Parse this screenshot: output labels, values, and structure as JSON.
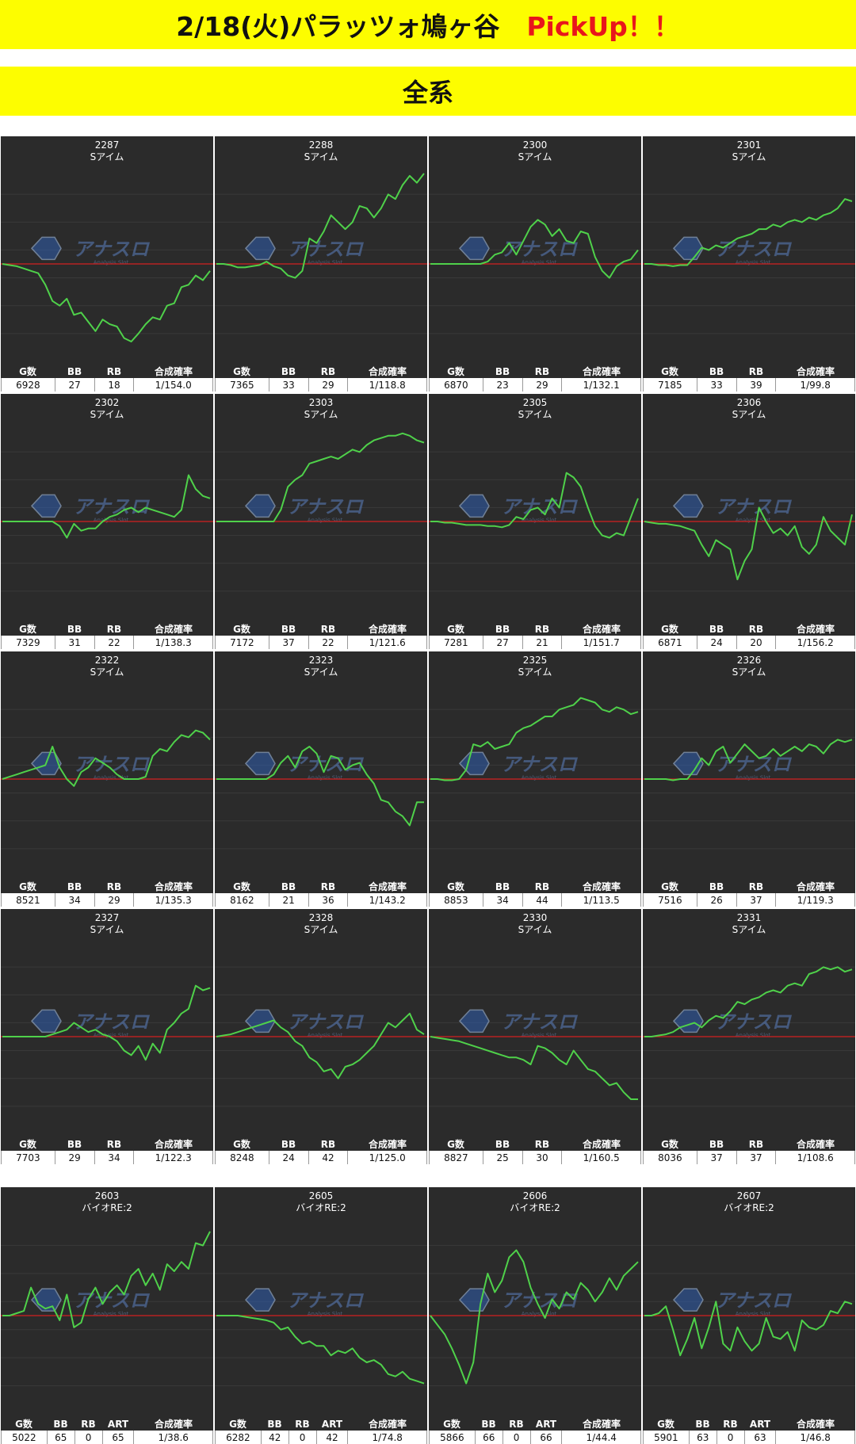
{
  "header": {
    "title": "2/18(火)パラッツォ鳩ヶ谷",
    "pickup": "PickUp！！",
    "section": "全系"
  },
  "colors": {
    "banner": "#fdfd00",
    "pickup": "#e8161b",
    "panel_bg": "#2b2b2b",
    "line": "#4fd14a",
    "baseline": "#d42020"
  },
  "watermark": {
    "text": "アナスロ",
    "sub": "Analysis Slot"
  },
  "columns_s": [
    "G数",
    "BB",
    "RB",
    "合成確率"
  ],
  "columns_bio": [
    "G数",
    "BB",
    "RB",
    "ART",
    "合成確率"
  ],
  "machines": [
    {
      "no": "2287",
      "model": "Sアイム",
      "g": "6928",
      "bb": "27",
      "rb": "18",
      "rate": "1/154.0",
      "trend": [
        0,
        -1,
        -2,
        -4,
        -6,
        -8,
        -18,
        -32,
        -36,
        -30,
        -44,
        -42,
        -50,
        -58,
        -48,
        -52,
        -54,
        -64,
        -67,
        -60,
        -52,
        -46,
        -48,
        -36,
        -34,
        -20,
        -18,
        -10,
        -14,
        -6
      ]
    },
    {
      "no": "2288",
      "model": "Sアイム",
      "g": "7365",
      "bb": "33",
      "rb": "29",
      "rate": "1/118.8",
      "trend": [
        0,
        0,
        -1,
        -3,
        -3,
        -2,
        -1,
        2,
        -2,
        -4,
        -10,
        -12,
        -6,
        22,
        18,
        28,
        42,
        36,
        30,
        36,
        50,
        48,
        40,
        48,
        60,
        56,
        68,
        76,
        70,
        78
      ]
    },
    {
      "no": "2300",
      "model": "Sアイム",
      "g": "6870",
      "bb": "23",
      "rb": "29",
      "rate": "1/132.1",
      "trend": [
        0,
        0,
        0,
        0,
        0,
        0,
        0,
        0,
        2,
        8,
        10,
        18,
        8,
        20,
        32,
        38,
        34,
        24,
        30,
        20,
        18,
        28,
        26,
        6,
        -6,
        -12,
        -2,
        2,
        4,
        12
      ]
    },
    {
      "no": "2301",
      "model": "Sアイム",
      "g": "7185",
      "bb": "33",
      "rb": "39",
      "rate": "1/99.8",
      "trend": [
        0,
        0,
        -1,
        -1,
        -2,
        -1,
        -1,
        6,
        14,
        12,
        16,
        14,
        18,
        22,
        24,
        26,
        30,
        30,
        34,
        32,
        36,
        38,
        36,
        40,
        38,
        42,
        44,
        48,
        56,
        54
      ]
    },
    {
      "no": "2302",
      "model": "Sアイム",
      "g": "7329",
      "bb": "31",
      "rb": "22",
      "rate": "1/138.3",
      "trend": [
        0,
        0,
        0,
        0,
        0,
        0,
        0,
        0,
        -4,
        -14,
        -2,
        -8,
        -6,
        -6,
        0,
        4,
        6,
        10,
        12,
        8,
        12,
        10,
        8,
        6,
        4,
        10,
        40,
        28,
        22,
        20
      ]
    },
    {
      "no": "2303",
      "model": "Sアイム",
      "g": "7172",
      "bb": "37",
      "rb": "22",
      "rate": "1/121.6",
      "trend": [
        0,
        0,
        0,
        0,
        0,
        0,
        0,
        0,
        0,
        10,
        30,
        36,
        40,
        50,
        52,
        54,
        56,
        54,
        58,
        62,
        60,
        66,
        70,
        72,
        74,
        74,
        76,
        74,
        70,
        68
      ]
    },
    {
      "no": "2305",
      "model": "Sアイム",
      "g": "7281",
      "bb": "27",
      "rb": "21",
      "rate": "1/151.7",
      "trend": [
        0,
        0,
        -1,
        -1,
        -2,
        -3,
        -3,
        -3,
        -4,
        -4,
        -5,
        -3,
        4,
        2,
        10,
        12,
        6,
        20,
        12,
        42,
        38,
        30,
        12,
        -4,
        -12,
        -14,
        -10,
        -12,
        4,
        20
      ]
    },
    {
      "no": "2306",
      "model": "Sアイム",
      "g": "6871",
      "bb": "24",
      "rb": "20",
      "rate": "1/156.2",
      "trend": [
        0,
        -1,
        -2,
        -2,
        -3,
        -4,
        -6,
        -8,
        -20,
        -30,
        -16,
        -20,
        -24,
        -50,
        -34,
        -24,
        12,
        0,
        -10,
        -6,
        -12,
        -4,
        -22,
        -28,
        -20,
        4,
        -8,
        -14,
        -20,
        6
      ]
    },
    {
      "no": "2322",
      "model": "Sアイム",
      "g": "8521",
      "bb": "34",
      "rb": "29",
      "rate": "1/135.3",
      "trend": [
        0,
        2,
        4,
        6,
        8,
        10,
        12,
        28,
        10,
        0,
        -6,
        6,
        10,
        18,
        14,
        10,
        4,
        0,
        0,
        0,
        2,
        20,
        26,
        24,
        32,
        38,
        36,
        42,
        40,
        34
      ]
    },
    {
      "no": "2323",
      "model": "Sアイム",
      "g": "8162",
      "bb": "21",
      "rb": "36",
      "rate": "1/143.2",
      "trend": [
        0,
        0,
        0,
        0,
        0,
        0,
        0,
        0,
        4,
        14,
        20,
        10,
        24,
        28,
        22,
        6,
        20,
        18,
        8,
        12,
        14,
        4,
        -4,
        -18,
        -20,
        -28,
        -32,
        -40,
        -20,
        -20
      ]
    },
    {
      "no": "2325",
      "model": "Sアイム",
      "g": "8853",
      "bb": "34",
      "rb": "44",
      "rate": "1/113.5",
      "trend": [
        0,
        0,
        -1,
        -1,
        0,
        8,
        30,
        28,
        32,
        26,
        28,
        30,
        40,
        44,
        46,
        50,
        54,
        54,
        60,
        62,
        64,
        70,
        68,
        66,
        60,
        58,
        62,
        60,
        56,
        58
      ]
    },
    {
      "no": "2326",
      "model": "Sアイム",
      "g": "7516",
      "bb": "26",
      "rb": "37",
      "rate": "1/119.3",
      "trend": [
        0,
        0,
        0,
        0,
        -1,
        0,
        0,
        8,
        18,
        12,
        24,
        28,
        14,
        22,
        30,
        24,
        18,
        20,
        26,
        20,
        24,
        28,
        24,
        30,
        28,
        22,
        30,
        34,
        32,
        34
      ]
    },
    {
      "no": "2327",
      "model": "Sアイム",
      "g": "7703",
      "bb": "29",
      "rb": "34",
      "rate": "1/122.3",
      "trend": [
        0,
        0,
        0,
        0,
        0,
        0,
        0,
        2,
        4,
        6,
        12,
        8,
        4,
        6,
        2,
        0,
        -4,
        -12,
        -16,
        -8,
        -20,
        -6,
        -14,
        6,
        12,
        20,
        24,
        44,
        40,
        42
      ]
    },
    {
      "no": "2328",
      "model": "Sアイム",
      "g": "8248",
      "bb": "24",
      "rb": "42",
      "rate": "1/125.0",
      "trend": [
        0,
        1,
        2,
        4,
        6,
        8,
        10,
        12,
        14,
        8,
        4,
        -4,
        -8,
        -18,
        -22,
        -30,
        -28,
        -36,
        -26,
        -24,
        -20,
        -14,
        -8,
        2,
        12,
        8,
        14,
        20,
        6,
        2
      ]
    },
    {
      "no": "2330",
      "model": "Sアイム",
      "g": "8827",
      "bb": "25",
      "rb": "30",
      "rate": "1/160.5",
      "trend": [
        0,
        -1,
        -2,
        -3,
        -4,
        -6,
        -8,
        -10,
        -12,
        -14,
        -16,
        -18,
        -18,
        -20,
        -24,
        -8,
        -10,
        -14,
        -20,
        -24,
        -12,
        -20,
        -28,
        -30,
        -36,
        -42,
        -40,
        -48,
        -54,
        -54
      ]
    },
    {
      "no": "2331",
      "model": "Sアイム",
      "g": "8036",
      "bb": "37",
      "rb": "37",
      "rate": "1/108.6",
      "trend": [
        0,
        0,
        1,
        2,
        4,
        8,
        10,
        12,
        8,
        14,
        18,
        16,
        22,
        30,
        28,
        32,
        34,
        38,
        40,
        38,
        44,
        46,
        44,
        54,
        56,
        60,
        58,
        60,
        56,
        58
      ]
    },
    {
      "no": "2603",
      "model": "バイオRE:2",
      "g": "5022",
      "bb": "65",
      "rb": "0",
      "rate": "1/38.6",
      "art": "65",
      "trend": [
        0,
        0,
        2,
        4,
        24,
        10,
        6,
        8,
        -4,
        18,
        -10,
        -6,
        14,
        24,
        10,
        20,
        26,
        18,
        34,
        40,
        26,
        36,
        22,
        44,
        38,
        46,
        40,
        62,
        60,
        72
      ]
    },
    {
      "no": "2605",
      "model": "バイオRE:2",
      "g": "6282",
      "bb": "42",
      "rb": "0",
      "rate": "1/74.8",
      "art": "42",
      "trend": [
        0,
        0,
        0,
        0,
        -1,
        -2,
        -3,
        -4,
        -6,
        -12,
        -10,
        -18,
        -24,
        -22,
        -26,
        -26,
        -34,
        -30,
        -32,
        -28,
        -36,
        -40,
        -38,
        -42,
        -50,
        -52,
        -48,
        -54,
        -56,
        -58
      ]
    },
    {
      "no": "2606",
      "model": "バイオRE:2",
      "g": "5866",
      "bb": "66",
      "rb": "0",
      "rate": "1/44.4",
      "art": "66",
      "trend": [
        0,
        -8,
        -16,
        -28,
        -42,
        -58,
        -40,
        10,
        36,
        20,
        30,
        50,
        56,
        46,
        24,
        10,
        -2,
        14,
        6,
        20,
        14,
        28,
        22,
        12,
        20,
        32,
        22,
        34,
        40,
        46
      ]
    },
    {
      "no": "2607",
      "model": "バイオRE:2",
      "g": "5901",
      "bb": "63",
      "rb": "0",
      "rate": "1/46.8",
      "art": "63",
      "trend": [
        0,
        0,
        2,
        8,
        -12,
        -34,
        -20,
        -2,
        -28,
        -10,
        12,
        -24,
        -30,
        -10,
        -22,
        -30,
        -24,
        -2,
        -18,
        -20,
        -14,
        -30,
        -4,
        -10,
        -12,
        -8,
        4,
        2,
        12,
        10
      ]
    }
  ]
}
